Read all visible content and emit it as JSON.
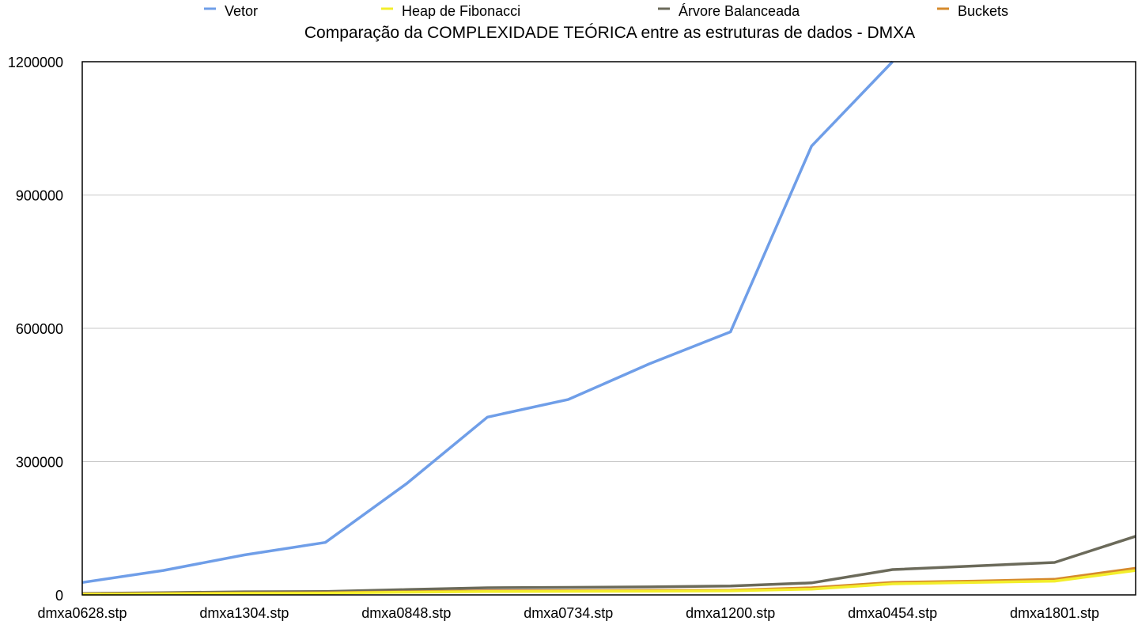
{
  "chart_data": {
    "type": "line",
    "title": "Comparação da COMPLEXIDADE TEÓRICA entre as estruturas de dados  - DMXA",
    "xlabel": "",
    "ylabel": "",
    "ylim": [
      0,
      1200000
    ],
    "yticks": [
      "0",
      "300000",
      "600000",
      "900000",
      "1200000"
    ],
    "grid": true,
    "legend_position": "top",
    "x_tick_labels": [
      "dmxa0628.stp",
      "dmxa1304.stp",
      "dmxa0848.stp",
      "dmxa0734.stp",
      "dmxa1200.stp",
      "dmxa0454.stp",
      "dmxa1801.stp"
    ],
    "x_tick_positions": [
      0,
      2,
      4,
      6,
      8,
      10,
      12
    ],
    "n_points": 14,
    "series": [
      {
        "name": "Vetor",
        "color": "#6f9ee8",
        "values": [
          28000,
          55000,
          90000,
          118000,
          250000,
          400000,
          440000,
          520000,
          592000,
          1010000,
          1200000,
          null,
          null,
          null
        ]
      },
      {
        "name": "Heap de Fibonacci",
        "color": "#f3ee2b",
        "values": [
          1500,
          2500,
          3500,
          4000,
          6000,
          7500,
          8000,
          8500,
          9000,
          13000,
          25000,
          28000,
          31000,
          55000
        ]
      },
      {
        "name": "Árvore Balanceada",
        "color": "#6b6a5a",
        "values": [
          3000,
          5000,
          7000,
          7500,
          12000,
          16000,
          17000,
          18000,
          20000,
          27000,
          57000,
          65000,
          73000,
          132000
        ]
      },
      {
        "name": "Buckets",
        "color": "#d68a2c",
        "values": [
          2000,
          3200,
          4200,
          4800,
          7000,
          9000,
          9500,
          10000,
          10500,
          16000,
          28000,
          31000,
          35000,
          60000
        ]
      }
    ]
  }
}
